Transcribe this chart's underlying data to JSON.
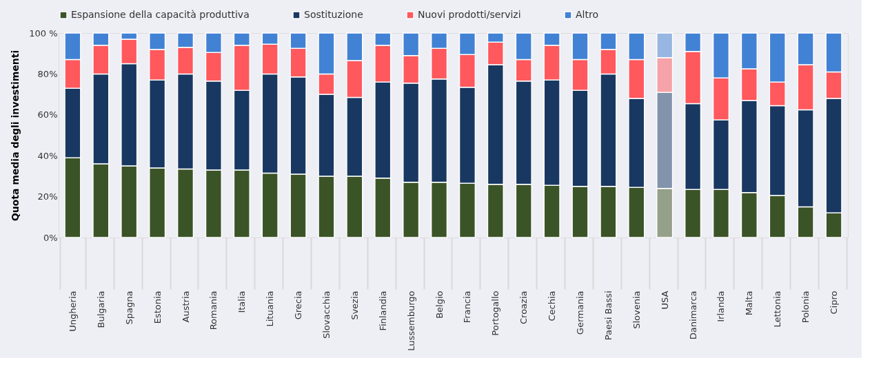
{
  "chart_data": {
    "type": "bar",
    "stacked": true,
    "ylabel": "Quota media degli investimenti",
    "categories": [
      "Ungheria",
      "Bulgaria",
      "Spagna",
      "Estonia",
      "Austria",
      "Romania",
      "Italia",
      "Lituania",
      "Grecia",
      "Slovacchia",
      "Svezia",
      "Finlandia",
      "Lussemburgo",
      "Belgio",
      "Francia",
      "Portogallo",
      "Croazia",
      "Cechia",
      "Germania",
      "Paesi Bassi",
      "Slovenia",
      "USA",
      "Danimarca",
      "Irlanda",
      "Malta",
      "Lettonia",
      "Polonia",
      "Cipro"
    ],
    "series": [
      {
        "name": "Espansione della capacità produttiva",
        "color": "#3b5427",
        "colors": [
          "#3b5427",
          "#3b5427",
          "#3b5427",
          "#3b5427",
          "#3b5427",
          "#3b5427",
          "#3b5427",
          "#3b5427",
          "#3b5427",
          "#3b5427",
          "#3b5427",
          "#3b5427",
          "#3b5427",
          "#3b5427",
          "#3b5427",
          "#3b5427",
          "#3b5427",
          "#3b5427",
          "#3b5427",
          "#3b5427",
          "#3b5427",
          "#95a08a",
          "#3b5427",
          "#3b5427",
          "#3b5427",
          "#3b5427",
          "#3b5427",
          "#3b5427"
        ],
        "values": [
          39,
          36,
          35,
          34,
          33.5,
          33,
          33,
          31.5,
          31,
          30,
          30,
          29,
          27,
          27,
          26.5,
          26,
          26,
          25.5,
          25,
          25,
          24.5,
          24,
          23.5,
          23.5,
          22,
          20.5,
          15,
          12
        ]
      },
      {
        "name": "Sostituzione",
        "color": "#183861",
        "colors": [
          "#183861",
          "#183861",
          "#183861",
          "#183861",
          "#183861",
          "#183861",
          "#183861",
          "#183861",
          "#183861",
          "#183861",
          "#183861",
          "#183861",
          "#183861",
          "#183861",
          "#183861",
          "#183861",
          "#183861",
          "#183861",
          "#183861",
          "#183861",
          "#183861",
          "#8294ac",
          "#183861",
          "#183861",
          "#183861",
          "#183861",
          "#183861",
          "#183861"
        ],
        "values": [
          34,
          44,
          50,
          43,
          46.5,
          43.5,
          39,
          48.5,
          47.5,
          40,
          38.5,
          47,
          48.5,
          50.5,
          47,
          58.5,
          50.5,
          51.5,
          47,
          55,
          43.5,
          47,
          42,
          34,
          45,
          44,
          47.5,
          56
        ]
      },
      {
        "name": "Nuovi prodotti/servizi",
        "color": "#ff585d",
        "colors": [
          "#ff585d",
          "#ff585d",
          "#ff585d",
          "#ff585d",
          "#ff585d",
          "#ff585d",
          "#ff585d",
          "#ff585d",
          "#ff585d",
          "#ff585d",
          "#ff585d",
          "#ff585d",
          "#ff585d",
          "#ff585d",
          "#ff585d",
          "#ff585d",
          "#ff585d",
          "#ff585d",
          "#ff585d",
          "#ff585d",
          "#ff585d",
          "#f5a3a8",
          "#ff585d",
          "#ff585d",
          "#ff585d",
          "#ff585d",
          "#ff585d",
          "#ff585d"
        ],
        "values": [
          14,
          14,
          12,
          15,
          13,
          14,
          22,
          14.5,
          14,
          10,
          18,
          18,
          13.5,
          15,
          16,
          11,
          10.5,
          17,
          15,
          12,
          19,
          17,
          25.5,
          20.5,
          15.5,
          11.5,
          22,
          13
        ]
      },
      {
        "name": "Altro",
        "color": "#4282d4",
        "colors": [
          "#4282d4",
          "#4282d4",
          "#4282d4",
          "#4282d4",
          "#4282d4",
          "#4282d4",
          "#4282d4",
          "#4282d4",
          "#4282d4",
          "#4282d4",
          "#4282d4",
          "#4282d4",
          "#4282d4",
          "#4282d4",
          "#4282d4",
          "#4282d4",
          "#4282d4",
          "#4282d4",
          "#4282d4",
          "#4282d4",
          "#4282d4",
          "#97b6e2",
          "#4282d4",
          "#4282d4",
          "#4282d4",
          "#4282d4",
          "#4282d4",
          "#4282d4"
        ],
        "values": [
          13,
          6,
          3,
          8,
          7,
          9.5,
          6,
          5.5,
          7.5,
          20,
          13.5,
          6,
          11,
          7.5,
          10.5,
          4.5,
          13,
          6,
          13,
          8,
          13,
          12,
          9,
          22,
          17.5,
          24,
          15.5,
          19
        ]
      }
    ],
    "ylim": [
      0,
      100
    ],
    "yticks": [
      {
        "value": 0,
        "label": "0%"
      },
      {
        "value": 20,
        "label": "20%"
      },
      {
        "value": 40,
        "label": "40%"
      },
      {
        "value": 60,
        "label": "60%"
      },
      {
        "value": 80,
        "label": "80%"
      },
      {
        "value": 100,
        "label": "100 %"
      }
    ],
    "grid": false,
    "legend": "top"
  }
}
